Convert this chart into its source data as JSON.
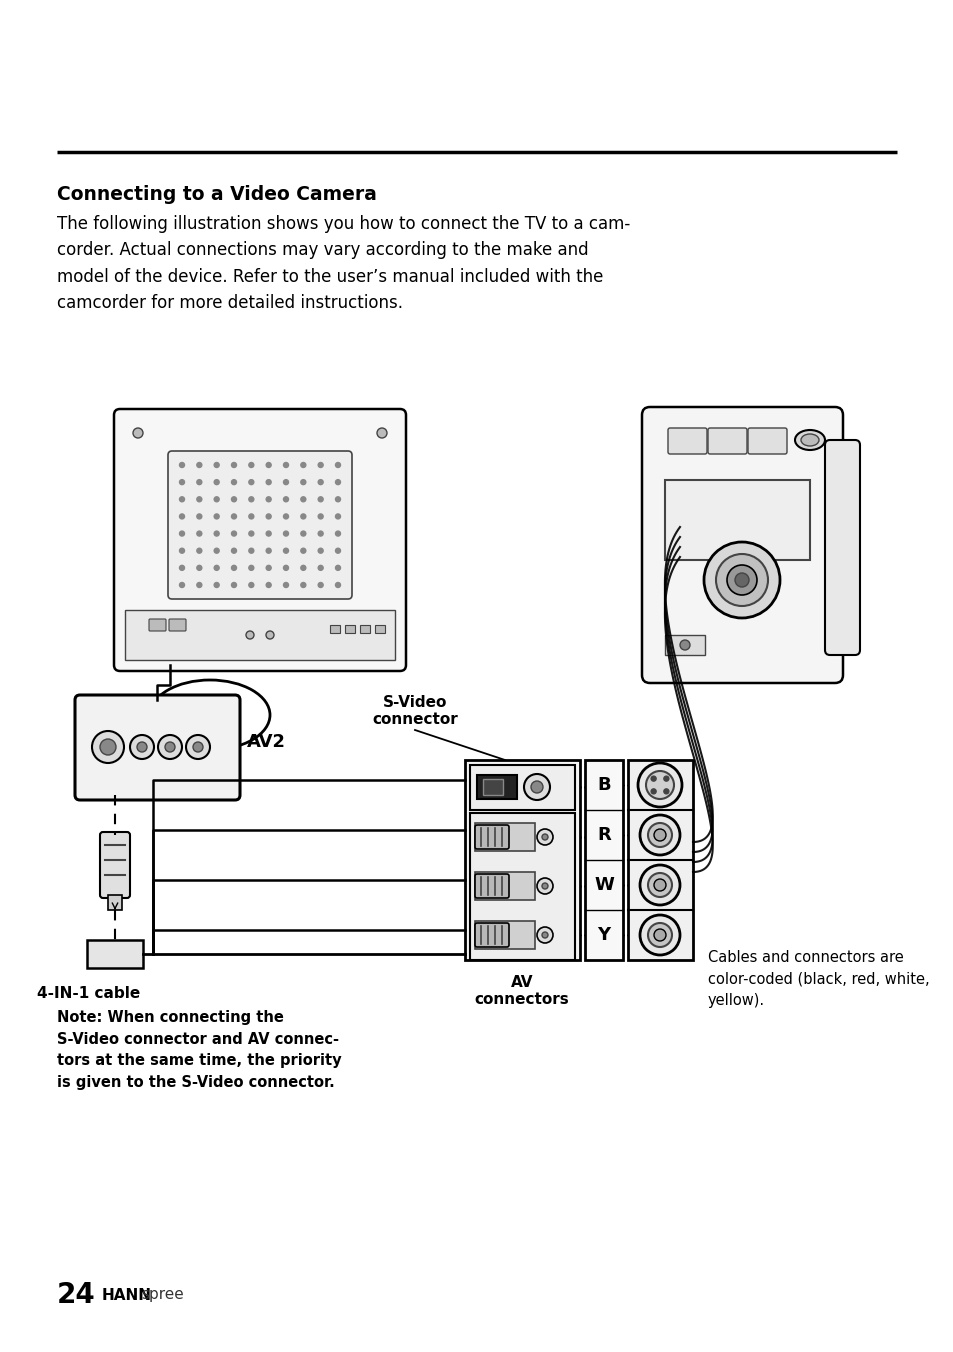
{
  "bg_color": "#ffffff",
  "title": "Connecting to a Video Camera",
  "body_line1": "The following illustration shows you how to connect the TV to a cam-",
  "body_line2": "corder. Actual connections may vary according to the make and",
  "body_line3": "model of the device. Refer to the user’s manual included with the",
  "body_line4": "camcorder for more detailed instructions.",
  "note_text": "Note: When connecting the\nS-Video connector and AV connec-\ntors at the same time, the priority\nis given to the S-Video connector.",
  "cable_label": "4-IN-1 cable",
  "av2_label": "AV2",
  "svideo_label": "S-Video\nconnector",
  "av_connectors_label": "AV\nconnectors",
  "cables_note": "Cables and connectors are\ncolor-coded (black, red, white,\nyellow).",
  "brwy_labels": [
    "B",
    "R",
    "W",
    "Y"
  ],
  "page_number": "24",
  "brand_bold": "HANN",
  "brand_light": "spree"
}
